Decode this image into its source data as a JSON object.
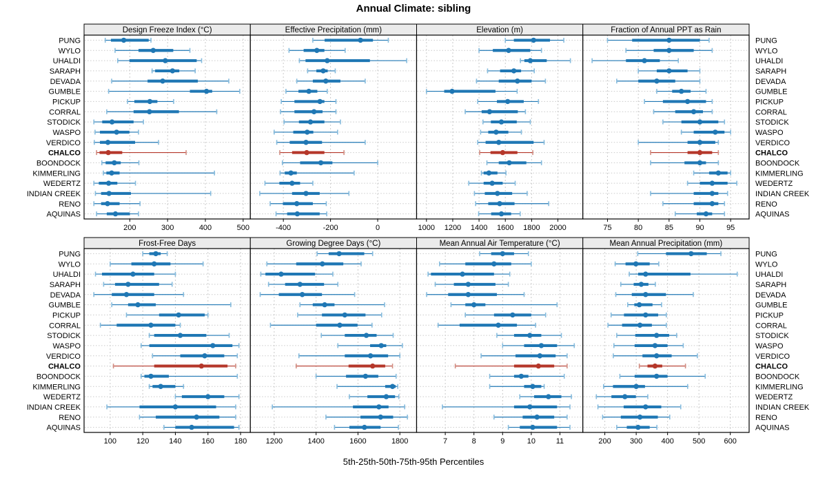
{
  "title": "Annual Climate: sibling",
  "footer": "5th-25th-50th-75th-95th Percentiles",
  "sites": [
    "PUNG",
    "WYLO",
    "UHALDI",
    "SARAPH",
    "DEVADA",
    "GUMBLE",
    "PICKUP",
    "CORRAL",
    "STODICK",
    "WASPO",
    "VERDICO",
    "CHALCO",
    "BOONDOCK",
    "KIMMERLING",
    "WEDERTZ",
    "INDIAN CREEK",
    "RENO",
    "AQUINAS"
  ],
  "highlight_site": "CHALCO",
  "colors": {
    "blue": "#1f77b4",
    "blue_light": "#85bbdd",
    "red": "#b5372a",
    "red_light": "#d28d82",
    "strip_bg": "#ebebeb",
    "grid": "#c9c9c9",
    "border": "#000000"
  },
  "chart_data": {
    "type": "dotplot",
    "percentiles": [
      5,
      25,
      50,
      75,
      95
    ],
    "layout": "2 rows x 4 cols trellis, shared site axis, free x scales",
    "panels": [
      {
        "title": "Design Freeze Index (°C)",
        "row": 0,
        "col": 0,
        "xlim": [
          79,
          519
        ],
        "ticks": [
          200,
          300,
          400,
          500
        ],
        "values": [
          [
            135,
            150,
            184,
            250,
            256
          ],
          [
            161,
            223,
            262,
            315,
            359
          ],
          [
            168,
            199,
            294,
            377,
            390
          ],
          [
            259,
            267,
            313,
            331,
            373
          ],
          [
            152,
            247,
            287,
            380,
            462
          ],
          [
            144,
            359,
            403,
            418,
            491
          ],
          [
            194,
            212,
            253,
            273,
            316
          ],
          [
            139,
            210,
            252,
            330,
            430
          ],
          [
            105,
            127,
            153,
            210,
            236
          ],
          [
            108,
            121,
            165,
            199,
            223
          ],
          [
            106,
            121,
            142,
            214,
            276
          ],
          [
            112,
            120,
            143,
            180,
            349
          ],
          [
            126,
            136,
            159,
            176,
            224
          ],
          [
            130,
            138,
            152,
            173,
            424
          ],
          [
            105,
            118,
            144,
            167,
            215
          ],
          [
            109,
            124,
            145,
            203,
            414
          ],
          [
            105,
            124,
            141,
            173,
            227
          ],
          [
            112,
            139,
            162,
            200,
            223
          ]
        ]
      },
      {
        "title": "Effective Precipitation (mm)",
        "row": 0,
        "col": 1,
        "xlim": [
          -540,
          165
        ],
        "ticks": [
          -400,
          -200,
          0
        ],
        "values": [
          [
            -275,
            -225,
            -73,
            -20,
            45
          ],
          [
            -376,
            -314,
            -258,
            -226,
            -138
          ],
          [
            -332,
            -306,
            -214,
            -33,
            123
          ],
          [
            -297,
            -260,
            -231,
            -212,
            -180
          ],
          [
            -343,
            -275,
            -220,
            -158,
            -53
          ],
          [
            -389,
            -336,
            -292,
            -256,
            -214
          ],
          [
            -409,
            -353,
            -245,
            -226,
            -177
          ],
          [
            -412,
            -353,
            -270,
            -234,
            -177
          ],
          [
            -397,
            -334,
            -285,
            -226,
            -158
          ],
          [
            -439,
            -358,
            -299,
            -273,
            -170
          ],
          [
            -428,
            -373,
            -304,
            -236,
            -53
          ],
          [
            -415,
            -363,
            -301,
            -226,
            -143
          ],
          [
            -404,
            -329,
            -241,
            -192,
            0
          ],
          [
            -414,
            -394,
            -368,
            -343,
            -100
          ],
          [
            -478,
            -417,
            -363,
            -329,
            -275
          ],
          [
            -500,
            -363,
            -304,
            -246,
            -122
          ],
          [
            -456,
            -402,
            -343,
            -275,
            -218
          ],
          [
            -431,
            -384,
            -341,
            -246,
            -216
          ]
        ]
      },
      {
        "title": "Elevation (m)",
        "row": 0,
        "col": 2,
        "xlim": [
          925,
          2190
        ],
        "ticks": [
          1000,
          1200,
          1400,
          1600,
          1800,
          2000
        ],
        "values": [
          [
            1600,
            1665,
            1815,
            1940,
            2045
          ],
          [
            1400,
            1505,
            1625,
            1790,
            1875
          ],
          [
            1715,
            1745,
            1790,
            1915,
            2095
          ],
          [
            1465,
            1560,
            1665,
            1720,
            1820
          ],
          [
            1381,
            1550,
            1692,
            1800,
            1905
          ],
          [
            1000,
            1135,
            1195,
            1525,
            1690
          ],
          [
            1390,
            1536,
            1618,
            1740,
            1852
          ],
          [
            1295,
            1420,
            1480,
            1695,
            1753
          ],
          [
            1430,
            1490,
            1570,
            1687,
            1790
          ],
          [
            1412,
            1470,
            1530,
            1623,
            1722
          ],
          [
            1390,
            1450,
            1550,
            1815,
            1895
          ],
          [
            1405,
            1487,
            1580,
            1692,
            1809
          ],
          [
            1460,
            1550,
            1630,
            1760,
            1875
          ],
          [
            1418,
            1435,
            1475,
            1540,
            1605
          ],
          [
            1322,
            1435,
            1500,
            1580,
            1675
          ],
          [
            1365,
            1444,
            1540,
            1652,
            1766
          ],
          [
            1374,
            1470,
            1557,
            1670,
            1930
          ],
          [
            1397,
            1492,
            1570,
            1644,
            1713
          ]
        ]
      },
      {
        "title": "Fraction of Annual PPT as Rain",
        "row": 0,
        "col": 3,
        "xlim": [
          71,
          98
        ],
        "ticks": [
          75,
          80,
          85,
          90,
          95
        ],
        "values": [
          [
            75,
            79,
            85,
            90,
            91.5
          ],
          [
            78,
            82.5,
            85,
            89,
            92
          ],
          [
            72.5,
            78,
            81,
            83.5,
            86.5
          ],
          [
            80,
            83,
            85,
            88,
            90
          ],
          [
            76.5,
            80,
            83,
            86,
            90
          ],
          [
            83,
            85.5,
            87,
            88.5,
            91
          ],
          [
            81,
            84,
            88,
            91,
            92
          ],
          [
            82.5,
            86,
            89,
            90.5,
            92
          ],
          [
            84,
            87,
            90,
            93,
            94
          ],
          [
            87,
            89,
            92.5,
            94,
            95
          ],
          [
            80,
            88,
            90,
            92.5,
            93
          ],
          [
            82,
            88,
            90,
            92,
            93
          ],
          [
            82,
            87.5,
            90,
            91,
            93
          ],
          [
            89,
            91.5,
            93,
            94.5,
            95
          ],
          [
            88,
            90,
            92,
            94.5,
            96
          ],
          [
            82,
            89,
            92,
            93,
            94.5
          ],
          [
            84,
            89,
            92,
            93,
            94
          ],
          [
            86,
            89.5,
            91,
            92,
            94
          ]
        ]
      },
      {
        "title": "Frost-Free Days",
        "row": 1,
        "col": 0,
        "xlim": [
          84,
          186
        ],
        "ticks": [
          100,
          120,
          140,
          160,
          180
        ],
        "values": [
          [
            120,
            124,
            128,
            131,
            135
          ],
          [
            100,
            113,
            127,
            137,
            157
          ],
          [
            91,
            95,
            114,
            127,
            140
          ],
          [
            96,
            103,
            111,
            130,
            138
          ],
          [
            90,
            101,
            110,
            127,
            145
          ],
          [
            101,
            111,
            117,
            128,
            174
          ],
          [
            110,
            130,
            142,
            158,
            160
          ],
          [
            94,
            104,
            125,
            140,
            143
          ],
          [
            124,
            127,
            143,
            159,
            173
          ],
          [
            119,
            124,
            163,
            175,
            179
          ],
          [
            126,
            143,
            158,
            170,
            178
          ],
          [
            102,
            127,
            156,
            172,
            177
          ],
          [
            119,
            121,
            125,
            136,
            178
          ],
          [
            124,
            126,
            131,
            140,
            145
          ],
          [
            140,
            144,
            160,
            170,
            179
          ],
          [
            98,
            118,
            140,
            165,
            177
          ],
          [
            118,
            128,
            153,
            167,
            177
          ],
          [
            133,
            140,
            150,
            176,
            179
          ]
        ]
      },
      {
        "title": "Growing Degree Days (°C)",
        "row": 1,
        "col": 1,
        "xlim": [
          1086,
          1880
        ],
        "ticks": [
          1200,
          1400,
          1600,
          1800
        ],
        "values": [
          [
            1405,
            1460,
            1510,
            1630,
            1670
          ],
          [
            1165,
            1305,
            1430,
            1530,
            1615
          ],
          [
            1136,
            1158,
            1233,
            1395,
            1480
          ],
          [
            1173,
            1252,
            1323,
            1438,
            1504
          ],
          [
            1133,
            1222,
            1334,
            1428,
            1584
          ],
          [
            1323,
            1384,
            1441,
            1488,
            1727
          ],
          [
            1312,
            1428,
            1537,
            1636,
            1713
          ],
          [
            1182,
            1400,
            1513,
            1598,
            1667
          ],
          [
            1425,
            1537,
            1640,
            1689,
            1768
          ],
          [
            1504,
            1658,
            1711,
            1735,
            1812
          ],
          [
            1318,
            1537,
            1660,
            1744,
            1800
          ],
          [
            1305,
            1555,
            1670,
            1730,
            1765
          ],
          [
            1400,
            1543,
            1636,
            1697,
            1782
          ],
          [
            1500,
            1730,
            1765,
            1780,
            1790
          ],
          [
            1559,
            1645,
            1735,
            1777,
            1795
          ],
          [
            1191,
            1576,
            1700,
            1746,
            1823
          ],
          [
            1447,
            1612,
            1708,
            1768,
            1836
          ],
          [
            1488,
            1559,
            1631,
            1708,
            1793
          ]
        ]
      },
      {
        "title": "Mean Annual Air Temperature (°C)",
        "row": 1,
        "col": 2,
        "xlim": [
          6.0,
          11.8
        ],
        "ticks": [
          7,
          8,
          9,
          10,
          11
        ],
        "values": [
          [
            8.2,
            8.6,
            9.0,
            9.4,
            9.9
          ],
          [
            6.8,
            7.7,
            8.7,
            9.3,
            10.0
          ],
          [
            6.4,
            6.5,
            7.6,
            8.7,
            9.25
          ],
          [
            6.65,
            7.3,
            7.8,
            8.75,
            9.2
          ],
          [
            6.35,
            7.1,
            7.8,
            8.8,
            9.75
          ],
          [
            7.2,
            7.7,
            8.0,
            8.4,
            10.9
          ],
          [
            7.7,
            8.7,
            9.35,
            10.0,
            10.5
          ],
          [
            6.75,
            7.5,
            8.85,
            9.5,
            10.15
          ],
          [
            8.8,
            9.4,
            9.95,
            10.35,
            11.05
          ],
          [
            9.0,
            9.75,
            10.35,
            10.9,
            11.5
          ],
          [
            8.25,
            9.45,
            10.3,
            10.85,
            11.25
          ],
          [
            7.35,
            9.4,
            10.25,
            10.8,
            11.25
          ],
          [
            8.55,
            9.4,
            9.65,
            9.9,
            11.15
          ],
          [
            8.55,
            9.75,
            10.05,
            10.35,
            10.45
          ],
          [
            9.6,
            10.1,
            10.6,
            11.05,
            11.4
          ],
          [
            6.9,
            9.4,
            9.95,
            10.9,
            11.35
          ],
          [
            8.7,
            9.7,
            10.2,
            10.8,
            11.25
          ],
          [
            9.2,
            9.6,
            10.05,
            10.9,
            11.35
          ]
        ]
      },
      {
        "title": "Mean Annual Precipitation (mm)",
        "row": 1,
        "col": 3,
        "xlim": [
          130,
          660
        ],
        "ticks": [
          200,
          300,
          400,
          500,
          600
        ],
        "values": [
          [
            305,
            395,
            475,
            525,
            570
          ],
          [
            233,
            266,
            299,
            343,
            372
          ],
          [
            278,
            306,
            330,
            473,
            622
          ],
          [
            251,
            292,
            316,
            339,
            361
          ],
          [
            235,
            286,
            330,
            395,
            482
          ],
          [
            273,
            294,
            310,
            352,
            381
          ],
          [
            220,
            261,
            330,
            370,
            396
          ],
          [
            210,
            255,
            312,
            350,
            396
          ],
          [
            238,
            297,
            365,
            405,
            429
          ],
          [
            229,
            295,
            360,
            400,
            450
          ],
          [
            227,
            320,
            365,
            413,
            495
          ],
          [
            310,
            336,
            360,
            383,
            457
          ],
          [
            248,
            295,
            365,
            400,
            520
          ],
          [
            196,
            226,
            300,
            328,
            464
          ],
          [
            173,
            221,
            264,
            299,
            337
          ],
          [
            178,
            260,
            330,
            380,
            442
          ],
          [
            193,
            251,
            312,
            369,
            407
          ],
          [
            238,
            270,
            306,
            343,
            366
          ]
        ]
      }
    ]
  }
}
